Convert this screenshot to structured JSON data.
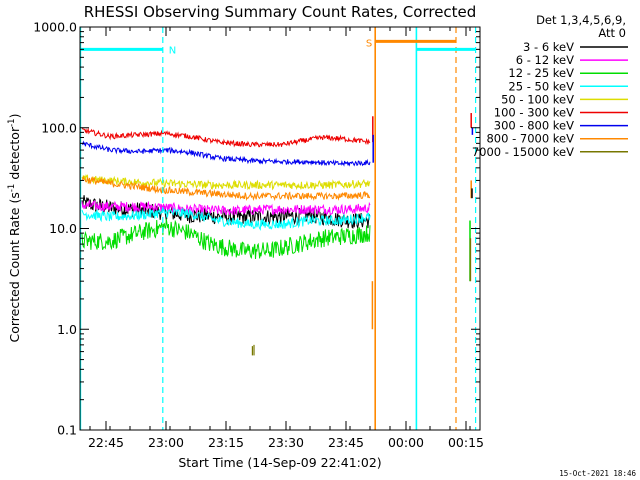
{
  "chart_data": {
    "type": "line",
    "title": "RHESSI Observing Summary Count Rates, Corrected",
    "xlabel": "Start Time (14-Sep-09 22:41:02)",
    "ylabel_main": "Corrected Count Rate (s",
    "ylabel_sup1": "-1",
    "ylabel_mid": " detector",
    "ylabel_sup2": "-1",
    "ylabel_end": ")",
    "y_scale": "log",
    "ylim": [
      0.1,
      1000
    ],
    "xlim_minutes": [
      -2.5,
      97.5
    ],
    "x_ticks": [
      {
        "m": 4,
        "label": "22:45"
      },
      {
        "m": 19,
        "label": "23:00"
      },
      {
        "m": 34,
        "label": "23:15"
      },
      {
        "m": 49,
        "label": "23:30"
      },
      {
        "m": 64,
        "label": "23:45"
      },
      {
        "m": 79,
        "label": "00:00"
      },
      {
        "m": 94,
        "label": "00:15"
      }
    ],
    "y_ticks": [
      {
        "v": 0.1,
        "label": "0.1"
      },
      {
        "v": 1,
        "label": "1.0"
      },
      {
        "v": 10,
        "label": "10.0"
      },
      {
        "v": 100,
        "label": "100.0"
      },
      {
        "v": 1000,
        "label": "1000.0"
      }
    ],
    "legend": {
      "header1": "Det 1,3,4,5,6,9,",
      "header2": "Att 0",
      "placement": "right",
      "entries": [
        {
          "label": "3 - 6 keV",
          "color": "#000000"
        },
        {
          "label": "6 - 12 keV",
          "color": "#ff00ff"
        },
        {
          "label": "12 - 25 keV",
          "color": "#00dd00"
        },
        {
          "label": "25 - 50 keV",
          "color": "#00ffff"
        },
        {
          "label": "50 - 100 keV",
          "color": "#dddd00"
        },
        {
          "label": "100 - 300 keV",
          "color": "#ee0000"
        },
        {
          "label": "300 - 800 keV",
          "color": "#0000ee"
        },
        {
          "label": "800 - 7000 keV",
          "color": "#ff8800"
        },
        {
          "label": "7000 - 15000 keV",
          "color": "#777700"
        }
      ]
    },
    "series": [
      {
        "name": "3 - 6 keV",
        "color": "#000000",
        "noise": 0.08,
        "points": [
          [
            -2,
            18
          ],
          [
            5,
            16
          ],
          [
            15,
            15
          ],
          [
            25,
            13.5
          ],
          [
            35,
            13
          ],
          [
            45,
            13
          ],
          [
            55,
            13.5
          ],
          [
            65,
            12
          ],
          [
            70,
            12
          ]
        ]
      },
      {
        "name": "6 - 12 keV",
        "color": "#ff00ff",
        "noise": 0.05,
        "points": [
          [
            -2,
            17
          ],
          [
            5,
            16.5
          ],
          [
            15,
            16.5
          ],
          [
            25,
            15.5
          ],
          [
            35,
            15
          ],
          [
            45,
            15.5
          ],
          [
            55,
            15.5
          ],
          [
            65,
            15.5
          ],
          [
            70,
            16
          ]
        ]
      },
      {
        "name": "12 - 25 keV",
        "color": "#00dd00",
        "noise": 0.09,
        "points": [
          [
            -2,
            7.5
          ],
          [
            5,
            7.5
          ],
          [
            12,
            9
          ],
          [
            19,
            10.5
          ],
          [
            25,
            9
          ],
          [
            30,
            7
          ],
          [
            38,
            6
          ],
          [
            45,
            6
          ],
          [
            52,
            7
          ],
          [
            58,
            8
          ],
          [
            65,
            8.5
          ],
          [
            70,
            9
          ]
        ]
      },
      {
        "name": "25 - 50 keV",
        "color": "#00ffff",
        "noise": 0.05,
        "points": [
          [
            -2,
            14
          ],
          [
            5,
            13
          ],
          [
            12,
            13.5
          ],
          [
            19,
            14.5
          ],
          [
            25,
            14
          ],
          [
            32,
            12
          ],
          [
            40,
            11
          ],
          [
            48,
            11
          ],
          [
            55,
            12
          ],
          [
            62,
            12
          ],
          [
            70,
            13
          ]
        ]
      },
      {
        "name": "50 - 100 keV",
        "color": "#dddd00",
        "noise": 0.04,
        "points": [
          [
            -2,
            31
          ],
          [
            10,
            29
          ],
          [
            20,
            28
          ],
          [
            30,
            27
          ],
          [
            40,
            27
          ],
          [
            50,
            27
          ],
          [
            60,
            27
          ],
          [
            70,
            28
          ]
        ]
      },
      {
        "name": "100 - 300 keV",
        "color": "#ee0000",
        "noise": 0.025,
        "points": [
          [
            -2,
            95
          ],
          [
            5,
            82
          ],
          [
            12,
            85
          ],
          [
            19,
            88
          ],
          [
            25,
            82
          ],
          [
            32,
            72
          ],
          [
            40,
            68
          ],
          [
            48,
            68
          ],
          [
            52,
            73
          ],
          [
            58,
            80
          ],
          [
            63,
            78
          ],
          [
            70,
            72
          ]
        ]
      },
      {
        "name": "300 - 800 keV",
        "color": "#0000ee",
        "noise": 0.025,
        "points": [
          [
            -2,
            70
          ],
          [
            5,
            60
          ],
          [
            12,
            58
          ],
          [
            19,
            60
          ],
          [
            25,
            57
          ],
          [
            32,
            50
          ],
          [
            40,
            47
          ],
          [
            48,
            46
          ],
          [
            55,
            46
          ],
          [
            62,
            44
          ],
          [
            70,
            45
          ]
        ]
      },
      {
        "name": "800 - 7000 keV",
        "color": "#ff8800",
        "noise": 0.035,
        "points": [
          [
            -2,
            31
          ],
          [
            5,
            28
          ],
          [
            12,
            26
          ],
          [
            19,
            24
          ],
          [
            25,
            23
          ],
          [
            32,
            22
          ],
          [
            40,
            21
          ],
          [
            48,
            21
          ],
          [
            55,
            21
          ],
          [
            62,
            21
          ],
          [
            70,
            21.5
          ]
        ]
      }
    ],
    "spikes": [
      {
        "color": "#ee0000",
        "m": 70.7,
        "from": 72,
        "to": 130
      },
      {
        "color": "#0000ee",
        "m": 70.8,
        "from": 45,
        "to": 85
      },
      {
        "color": "#ff8800",
        "m": 70.6,
        "from": 1,
        "to": 3
      }
    ],
    "right_fragments": [
      {
        "color": "#ee0000",
        "m": 95.3,
        "from": 100,
        "to": 140
      },
      {
        "color": "#0000ee",
        "m": 95.6,
        "from": 85,
        "to": 100
      },
      {
        "color": "#ff8800",
        "m": 95.3,
        "from": 20,
        "to": 30
      },
      {
        "color": "#00dd00",
        "m": 95.0,
        "from": 3,
        "to": 12
      },
      {
        "color": "#777700",
        "m": 95.1,
        "from": 3,
        "to": 8
      },
      {
        "color": "#000000",
        "m": 95.5,
        "from": 20,
        "to": 25
      }
    ],
    "olive_marks": [
      {
        "m": 40.6,
        "from": 0.55,
        "to": 0.68
      },
      {
        "m": 41.0,
        "from": 0.55,
        "to": 0.7
      }
    ],
    "intervals": {
      "night_label": "N",
      "saa_label": "S",
      "night_bars": [
        {
          "from": -2.5,
          "to": 18.2,
          "y": 600
        },
        {
          "from": 81.6,
          "to": 96.4,
          "y": 600
        }
      ],
      "saa_bar": {
        "from": 71.3,
        "to": 91.5,
        "y": 720
      },
      "cyan_solid": [
        -2.4,
        81.6
      ],
      "cyan_dashed": [
        18.2,
        96.4
      ],
      "orange_solid": [
        71.3
      ],
      "orange_dashed": [
        91.5
      ]
    }
  },
  "footer": {
    "timestamp": "15-Oct-2021 18:46"
  }
}
